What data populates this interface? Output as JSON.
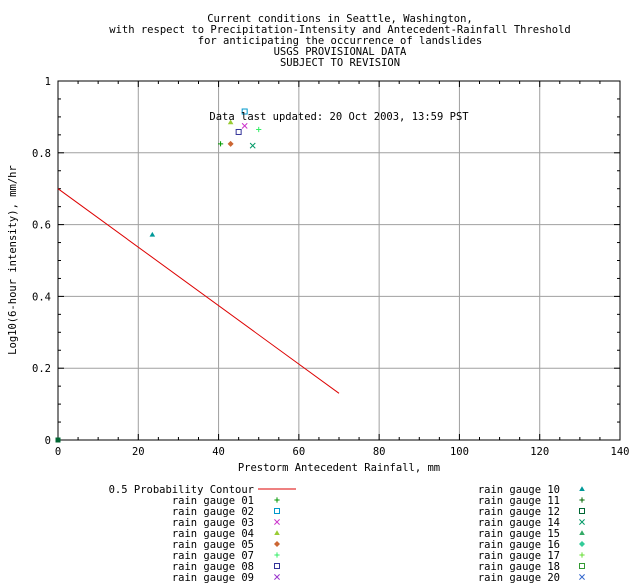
{
  "chart_data": {
    "type": "scatter",
    "title_lines": [
      "Current conditions in Seattle, Washington,",
      "with respect to Precipitation-Intensity and Antecedent-Rainfall Threshold",
      "for anticipating the occurrence of landslides",
      "USGS PROVISIONAL DATA",
      "SUBJECT TO REVISION"
    ],
    "annotation": "Data last updated: 20 Oct 2003, 13:59 PST",
    "xlabel": "Prestorm Antecedent Rainfall, mm",
    "ylabel": "Log10(6-hour intensity), mm/hr",
    "xlim": [
      0,
      140
    ],
    "ylim": [
      0,
      1
    ],
    "xticks": [
      "0",
      "20",
      "40",
      "60",
      "80",
      "100",
      "120",
      "140"
    ],
    "yticks": [
      "0",
      "0.2",
      "0.4",
      "0.6",
      "0.8",
      "1"
    ],
    "grid": true,
    "contour": {
      "name": "0.5 Probability Contour",
      "color": "#dd0000",
      "x": [
        0,
        70
      ],
      "y": [
        0.7,
        0.13
      ]
    },
    "series": [
      {
        "name": "rain gauge 01",
        "color": "#009900",
        "marker": "plus",
        "points": [
          [
            40.5,
            0.825
          ]
        ]
      },
      {
        "name": "rain gauge 02",
        "color": "#0099cc",
        "marker": "square",
        "points": [
          [
            46.5,
            0.915
          ]
        ]
      },
      {
        "name": "rain gauge 03",
        "color": "#cc33cc",
        "marker": "cross",
        "points": [
          [
            46.5,
            0.875
          ]
        ]
      },
      {
        "name": "rain gauge 04",
        "color": "#99cc33",
        "marker": "triangle",
        "points": [
          [
            43.0,
            0.885
          ]
        ]
      },
      {
        "name": "rain gauge 05",
        "color": "#cc6633",
        "marker": "diamond",
        "points": [
          [
            43.0,
            0.825
          ]
        ]
      },
      {
        "name": "rain gauge 07",
        "color": "#33ee66",
        "marker": "plus",
        "points": [
          [
            50.0,
            0.865
          ]
        ]
      },
      {
        "name": "rain gauge 08",
        "color": "#333399",
        "marker": "square",
        "points": [
          [
            45.0,
            0.858
          ]
        ]
      },
      {
        "name": "rain gauge 09",
        "color": "#9933cc",
        "marker": "cross",
        "points": []
      },
      {
        "name": "rain gauge 10",
        "color": "#009999",
        "marker": "triangle",
        "points": [
          [
            23.5,
            0.572
          ]
        ]
      },
      {
        "name": "rain gauge 11",
        "color": "#006600",
        "marker": "plus",
        "points": []
      },
      {
        "name": "rain gauge 12",
        "color": "#006633",
        "marker": "square",
        "points": [
          [
            0,
            0
          ]
        ]
      },
      {
        "name": "rain gauge 14",
        "color": "#009966",
        "marker": "cross",
        "points": [
          [
            48.5,
            0.82
          ]
        ]
      },
      {
        "name": "rain gauge 15",
        "color": "#33aa66",
        "marker": "triangle",
        "points": []
      },
      {
        "name": "rain gauge 16",
        "color": "#33cc99",
        "marker": "diamond",
        "points": []
      },
      {
        "name": "rain gauge 17",
        "color": "#66dd33",
        "marker": "plus",
        "points": []
      },
      {
        "name": "rain gauge 18",
        "color": "#339933",
        "marker": "square",
        "points": []
      },
      {
        "name": "rain gauge 20",
        "color": "#3366cc",
        "marker": "cross",
        "points": []
      }
    ]
  }
}
